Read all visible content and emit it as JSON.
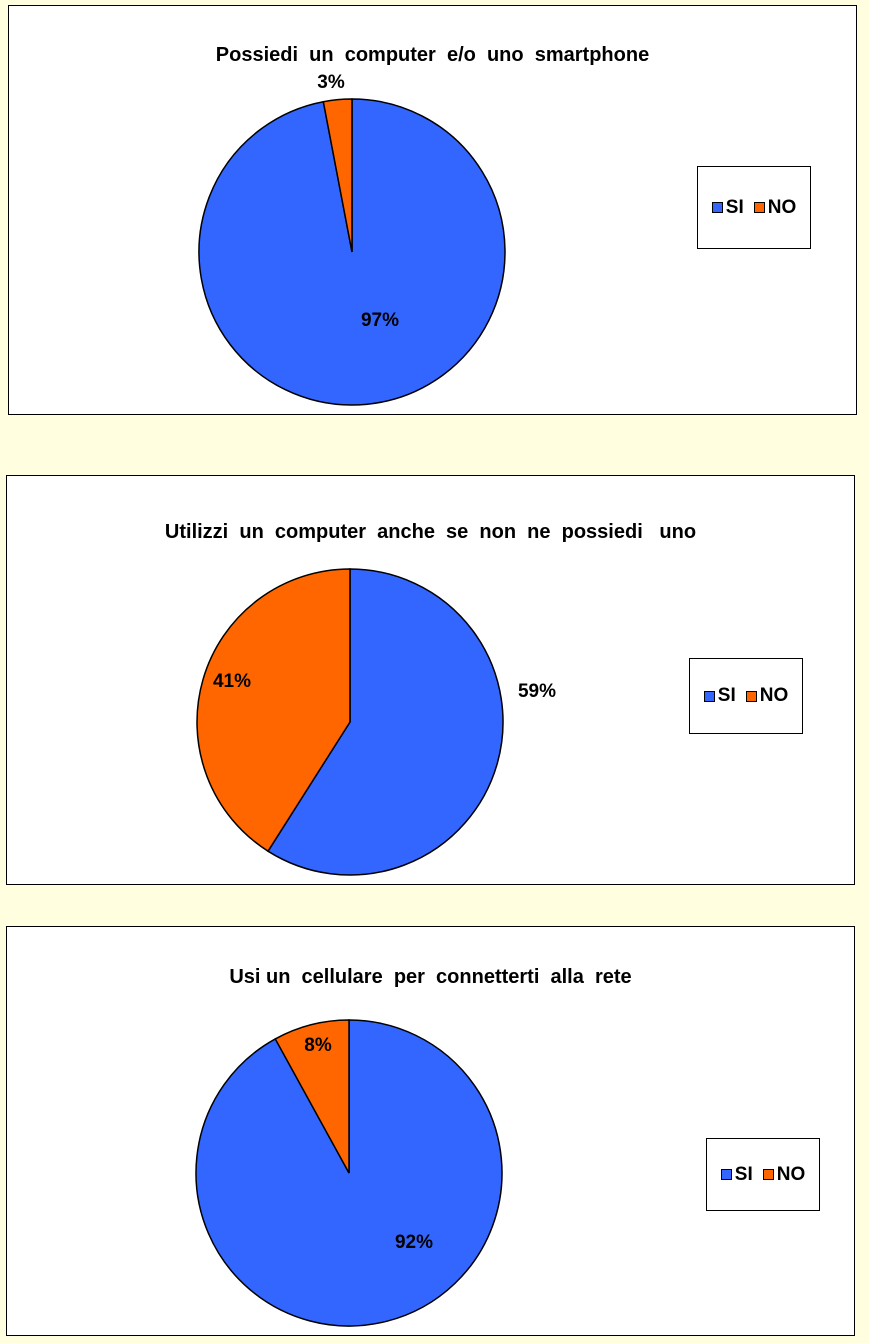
{
  "colors": {
    "si": "#3366FF",
    "no": "#FF6600",
    "outline": "#000000",
    "background": "#FFFFE0"
  },
  "chart_data": [
    {
      "type": "pie",
      "title": "Possiedi  un  computer  e/o  uno  smartphone",
      "categories": [
        "SI",
        "NO"
      ],
      "values": [
        97,
        3
      ],
      "labels": [
        "97%",
        "3%"
      ],
      "legend_position": "right"
    },
    {
      "type": "pie",
      "title": "Utilizzi  un  computer  anche  se  non  ne  possiedi   uno",
      "categories": [
        "SI",
        "NO"
      ],
      "values": [
        59,
        41
      ],
      "labels": [
        "59%",
        "41%"
      ],
      "legend_position": "right"
    },
    {
      "type": "pie",
      "title": "Usi un  cellulare  per  connetterti  alla  rete",
      "categories": [
        "SI",
        "NO"
      ],
      "values": [
        92,
        8
      ],
      "labels": [
        "92%",
        "8%"
      ],
      "legend_position": "right"
    }
  ]
}
